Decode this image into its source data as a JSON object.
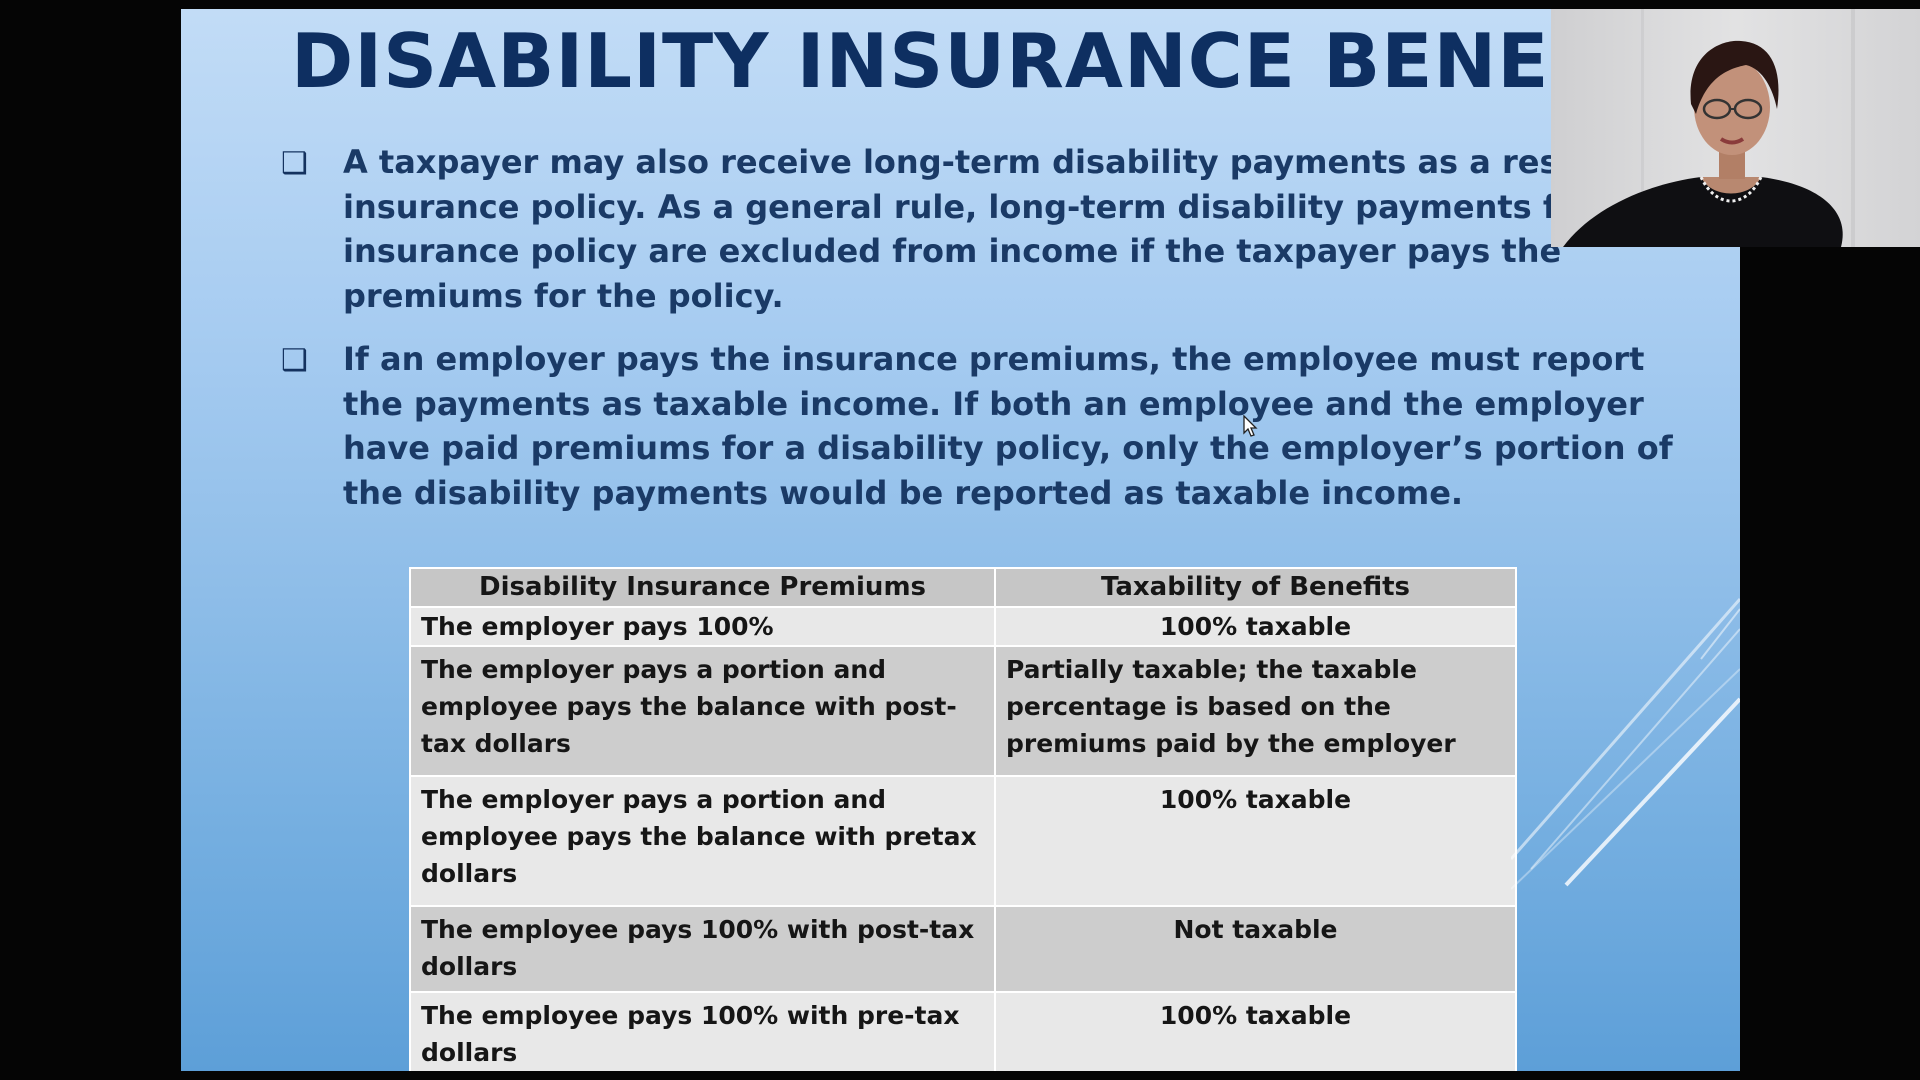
{
  "slide": {
    "title": "DISABILITY INSURANCE BENEFITS",
    "bullet_marker": "❑",
    "bullets": [
      "A taxpayer may also receive long-term disability payments as a result of an insurance policy. As a general rule, long-term disability payments from an insurance policy are excluded from income if the taxpayer pays the premiums for the policy.",
      "If an employer pays the insurance premiums, the employee must report the payments as taxable income. If both an employee and the employer have paid premiums for a disability policy, only the employer’s portion of the disability payments would be reported as taxable income."
    ],
    "table": {
      "headers": [
        "Disability Insurance Premiums",
        "Taxability of Benefits"
      ],
      "rows": [
        [
          "The employer pays 100%",
          "100% taxable"
        ],
        [
          "The employer pays a portion and employee pays the balance with post-tax dollars",
          "Partially taxable; the taxable percentage is based on the premiums paid by the employer"
        ],
        [
          "The employer pays a portion and employee pays the balance with pretax dollars",
          "100% taxable"
        ],
        [
          "The employee pays 100% with post-tax dollars",
          "Not taxable"
        ],
        [
          "The employee pays 100% with pre-tax dollars",
          "100% taxable"
        ]
      ]
    }
  },
  "colors": {
    "title": "#0e2f61",
    "body_text": "#1a3a66",
    "table_header_bg": "#c6c6c6",
    "table_row_light": "#e8e8e8",
    "table_row_dark": "#cdcdcd",
    "slide_top": "#c2dcf6",
    "slide_bottom": "#5d9fd8"
  },
  "icons": {
    "bullet": "hollow-square-bullet-icon",
    "pointer": "mouse-pointer-icon"
  }
}
